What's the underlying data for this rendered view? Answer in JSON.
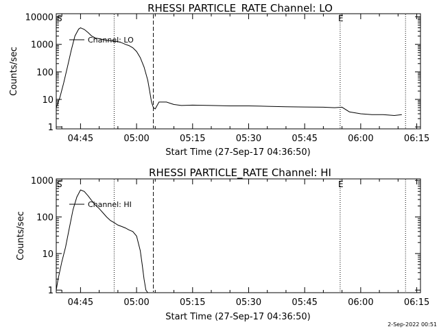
{
  "footer_stamp": "2-Sep-2022 00:51",
  "chart_data": [
    {
      "type": "line",
      "title": "RHESSI PARTICLE_RATE Channel: LO",
      "xlabel": "Start Time (27-Sep-17 04:36:50)",
      "ylabel": "Counts/sec",
      "legend": {
        "entry": "Channel: LO",
        "placement": "top-left"
      },
      "x_tick_labels": [
        "04:45",
        "05:00",
        "05:15",
        "05:30",
        "05:45",
        "06:00",
        "06:15"
      ],
      "y_tick_labels": [
        "1",
        "10",
        "100",
        "1000",
        "10000"
      ],
      "y_scale": "log",
      "grid": false,
      "xlim": [
        "04:38:30",
        "06:16:00"
      ],
      "ylim": [
        0.85,
        13000
      ],
      "markers": {
        "start": "S",
        "end": "E"
      },
      "vlines": [
        {
          "time": "04:54:00",
          "style": "dotted"
        },
        {
          "time": "05:04:30",
          "style": "dashed"
        },
        {
          "time": "05:54:30",
          "style": "dotted"
        },
        {
          "time": "06:12:00",
          "style": "dotted"
        }
      ],
      "series": [
        {
          "name": "Channel: LO",
          "x": [
            "04:38:30",
            "04:39:30",
            "04:40:30",
            "04:41:30",
            "04:42:30",
            "04:43:30",
            "04:44:30",
            "04:45:00",
            "04:46:00",
            "04:47:00",
            "04:48:00",
            "04:49:00",
            "04:50:00",
            "04:51:00",
            "04:52:00",
            "04:53:00",
            "04:54:00",
            "04:55:00",
            "04:56:00",
            "04:57:00",
            "04:58:00",
            "04:59:00",
            "05:00:00",
            "05:01:00",
            "05:02:00",
            "05:03:00",
            "05:03:30",
            "05:04:00",
            "05:04:30",
            "05:05:00",
            "05:06:00",
            "05:08:00",
            "05:10:00",
            "05:12:00",
            "05:15:00",
            "05:20:00",
            "05:25:00",
            "05:30:00",
            "05:35:00",
            "05:40:00",
            "05:45:00",
            "05:50:00",
            "05:53:00",
            "05:55:00",
            "05:57:00",
            "06:00:00",
            "06:03:00",
            "06:06:00",
            "06:09:00",
            "06:11:00"
          ],
          "y": [
            5,
            12,
            40,
            150,
            600,
            2000,
            3600,
            4000,
            3500,
            2700,
            2000,
            1700,
            1600,
            1500,
            1400,
            1350,
            1300,
            1250,
            1150,
            1000,
            900,
            750,
            550,
            330,
            150,
            50,
            20,
            8,
            5,
            4.5,
            8,
            8,
            6.5,
            6,
            6.2,
            6,
            5.8,
            5.8,
            5.6,
            5.4,
            5.3,
            5.2,
            5,
            5.2,
            3.5,
            3,
            2.8,
            2.8,
            2.6,
            2.8
          ]
        }
      ]
    },
    {
      "type": "line",
      "title": "RHESSI PARTICLE_RATE Channel: HI",
      "xlabel": "Start Time (27-Sep-17 04:36:50)",
      "ylabel": "Counts/sec",
      "legend": {
        "entry": "Channel: HI",
        "placement": "top-left"
      },
      "x_tick_labels": [
        "04:45",
        "05:00",
        "05:15",
        "05:30",
        "05:45",
        "06:00",
        "06:15"
      ],
      "y_tick_labels": [
        "1",
        "10",
        "100",
        "1000"
      ],
      "y_scale": "log",
      "grid": false,
      "xlim": [
        "04:38:30",
        "06:16:00"
      ],
      "ylim": [
        0.85,
        1100
      ],
      "markers": {
        "start": "S",
        "end": "E"
      },
      "vlines": [
        {
          "time": "04:54:00",
          "style": "dotted"
        },
        {
          "time": "05:04:30",
          "style": "dashed"
        },
        {
          "time": "05:54:30",
          "style": "dotted"
        },
        {
          "time": "06:12:00",
          "style": "dotted"
        }
      ],
      "series": [
        {
          "name": "Channel: HI",
          "x": [
            "04:38:30",
            "04:39:00",
            "04:40:00",
            "04:41:00",
            "04:42:00",
            "04:43:00",
            "04:44:00",
            "04:45:00",
            "04:46:00",
            "04:47:00",
            "04:48:00",
            "04:49:00",
            "04:50:00",
            "04:51:00",
            "04:52:00",
            "04:53:00",
            "04:54:00",
            "04:55:00",
            "04:56:00",
            "04:57:00",
            "04:58:00",
            "04:59:00",
            "05:00:00",
            "05:01:00",
            "05:01:30",
            "05:02:00",
            "05:02:30",
            "05:03:00"
          ],
          "y": [
            1,
            2,
            6,
            15,
            50,
            160,
            350,
            550,
            500,
            380,
            280,
            210,
            170,
            130,
            100,
            80,
            70,
            60,
            55,
            50,
            44,
            40,
            30,
            12,
            5,
            2,
            1,
            0.85
          ]
        }
      ]
    }
  ]
}
